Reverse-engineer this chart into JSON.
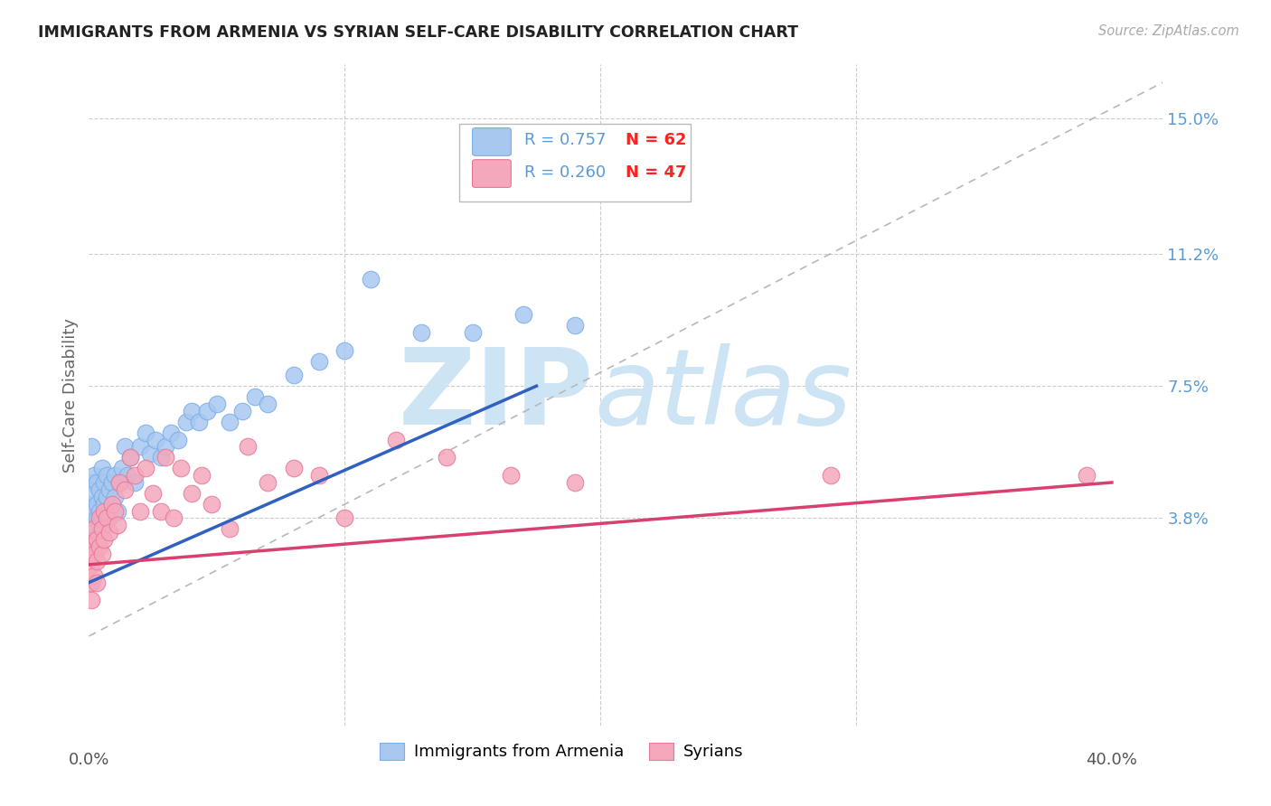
{
  "title": "IMMIGRANTS FROM ARMENIA VS SYRIAN SELF-CARE DISABILITY CORRELATION CHART",
  "source": "Source: ZipAtlas.com",
  "ylabel": "Self-Care Disability",
  "ytick_vals": [
    0.038,
    0.075,
    0.112,
    0.15
  ],
  "ytick_labels": [
    "3.8%",
    "7.5%",
    "11.2%",
    "15.0%"
  ],
  "xlim": [
    0.0,
    0.42
  ],
  "ylim": [
    -0.02,
    0.165
  ],
  "series1_name": "Immigrants from Armenia",
  "series1_color": "#a8c8f0",
  "series1_edge": "#7aaee8",
  "series2_name": "Syrians",
  "series2_color": "#f5a8bc",
  "series2_edge": "#e87898",
  "regression1_x0": 0.0,
  "regression1_y0": 0.02,
  "regression1_x1": 0.175,
  "regression1_y1": 0.075,
  "regression1_color": "#3060c0",
  "regression2_x0": 0.0,
  "regression2_y0": 0.025,
  "regression2_x1": 0.4,
  "regression2_y1": 0.048,
  "regression2_color": "#d84070",
  "dash_color": "#b8b8b8",
  "grid_color": "#cccccc",
  "title_color": "#222222",
  "source_color": "#aaaaaa",
  "ytick_color": "#5b9bd5",
  "legend_R_color": "#5b9bd5",
  "legend_N_color": "#ff2222",
  "watermark_zip_color": "#cde4f5",
  "watermark_atlas_color": "#cde4f5",
  "arm_x": [
    0.001,
    0.001,
    0.001,
    0.001,
    0.001,
    0.002,
    0.002,
    0.002,
    0.002,
    0.002,
    0.003,
    0.003,
    0.003,
    0.003,
    0.004,
    0.004,
    0.004,
    0.005,
    0.005,
    0.005,
    0.006,
    0.006,
    0.006,
    0.007,
    0.007,
    0.008,
    0.008,
    0.009,
    0.01,
    0.01,
    0.011,
    0.012,
    0.013,
    0.014,
    0.015,
    0.016,
    0.018,
    0.02,
    0.022,
    0.024,
    0.026,
    0.028,
    0.03,
    0.032,
    0.035,
    0.038,
    0.04,
    0.043,
    0.046,
    0.05,
    0.055,
    0.06,
    0.065,
    0.07,
    0.08,
    0.09,
    0.1,
    0.11,
    0.13,
    0.15,
    0.17,
    0.19
  ],
  "arm_y": [
    0.058,
    0.048,
    0.042,
    0.038,
    0.032,
    0.05,
    0.045,
    0.04,
    0.036,
    0.03,
    0.048,
    0.042,
    0.038,
    0.032,
    0.046,
    0.04,
    0.036,
    0.052,
    0.044,
    0.038,
    0.048,
    0.042,
    0.036,
    0.05,
    0.044,
    0.046,
    0.038,
    0.048,
    0.05,
    0.044,
    0.04,
    0.048,
    0.052,
    0.058,
    0.05,
    0.055,
    0.048,
    0.058,
    0.062,
    0.056,
    0.06,
    0.055,
    0.058,
    0.062,
    0.06,
    0.065,
    0.068,
    0.065,
    0.068,
    0.07,
    0.065,
    0.068,
    0.072,
    0.07,
    0.078,
    0.082,
    0.085,
    0.105,
    0.09,
    0.09,
    0.095,
    0.092
  ],
  "syr_x": [
    0.001,
    0.001,
    0.001,
    0.001,
    0.002,
    0.002,
    0.002,
    0.003,
    0.003,
    0.003,
    0.004,
    0.004,
    0.005,
    0.005,
    0.006,
    0.006,
    0.007,
    0.008,
    0.009,
    0.01,
    0.011,
    0.012,
    0.014,
    0.016,
    0.018,
    0.02,
    0.022,
    0.025,
    0.028,
    0.03,
    0.033,
    0.036,
    0.04,
    0.044,
    0.048,
    0.055,
    0.062,
    0.07,
    0.08,
    0.09,
    0.1,
    0.12,
    0.14,
    0.165,
    0.19,
    0.29,
    0.39
  ],
  "syr_y": [
    0.03,
    0.025,
    0.02,
    0.015,
    0.035,
    0.028,
    0.022,
    0.032,
    0.026,
    0.02,
    0.038,
    0.03,
    0.035,
    0.028,
    0.04,
    0.032,
    0.038,
    0.034,
    0.042,
    0.04,
    0.036,
    0.048,
    0.046,
    0.055,
    0.05,
    0.04,
    0.052,
    0.045,
    0.04,
    0.055,
    0.038,
    0.052,
    0.045,
    0.05,
    0.042,
    0.035,
    0.058,
    0.048,
    0.052,
    0.05,
    0.038,
    0.06,
    0.055,
    0.05,
    0.048,
    0.05,
    0.05
  ]
}
